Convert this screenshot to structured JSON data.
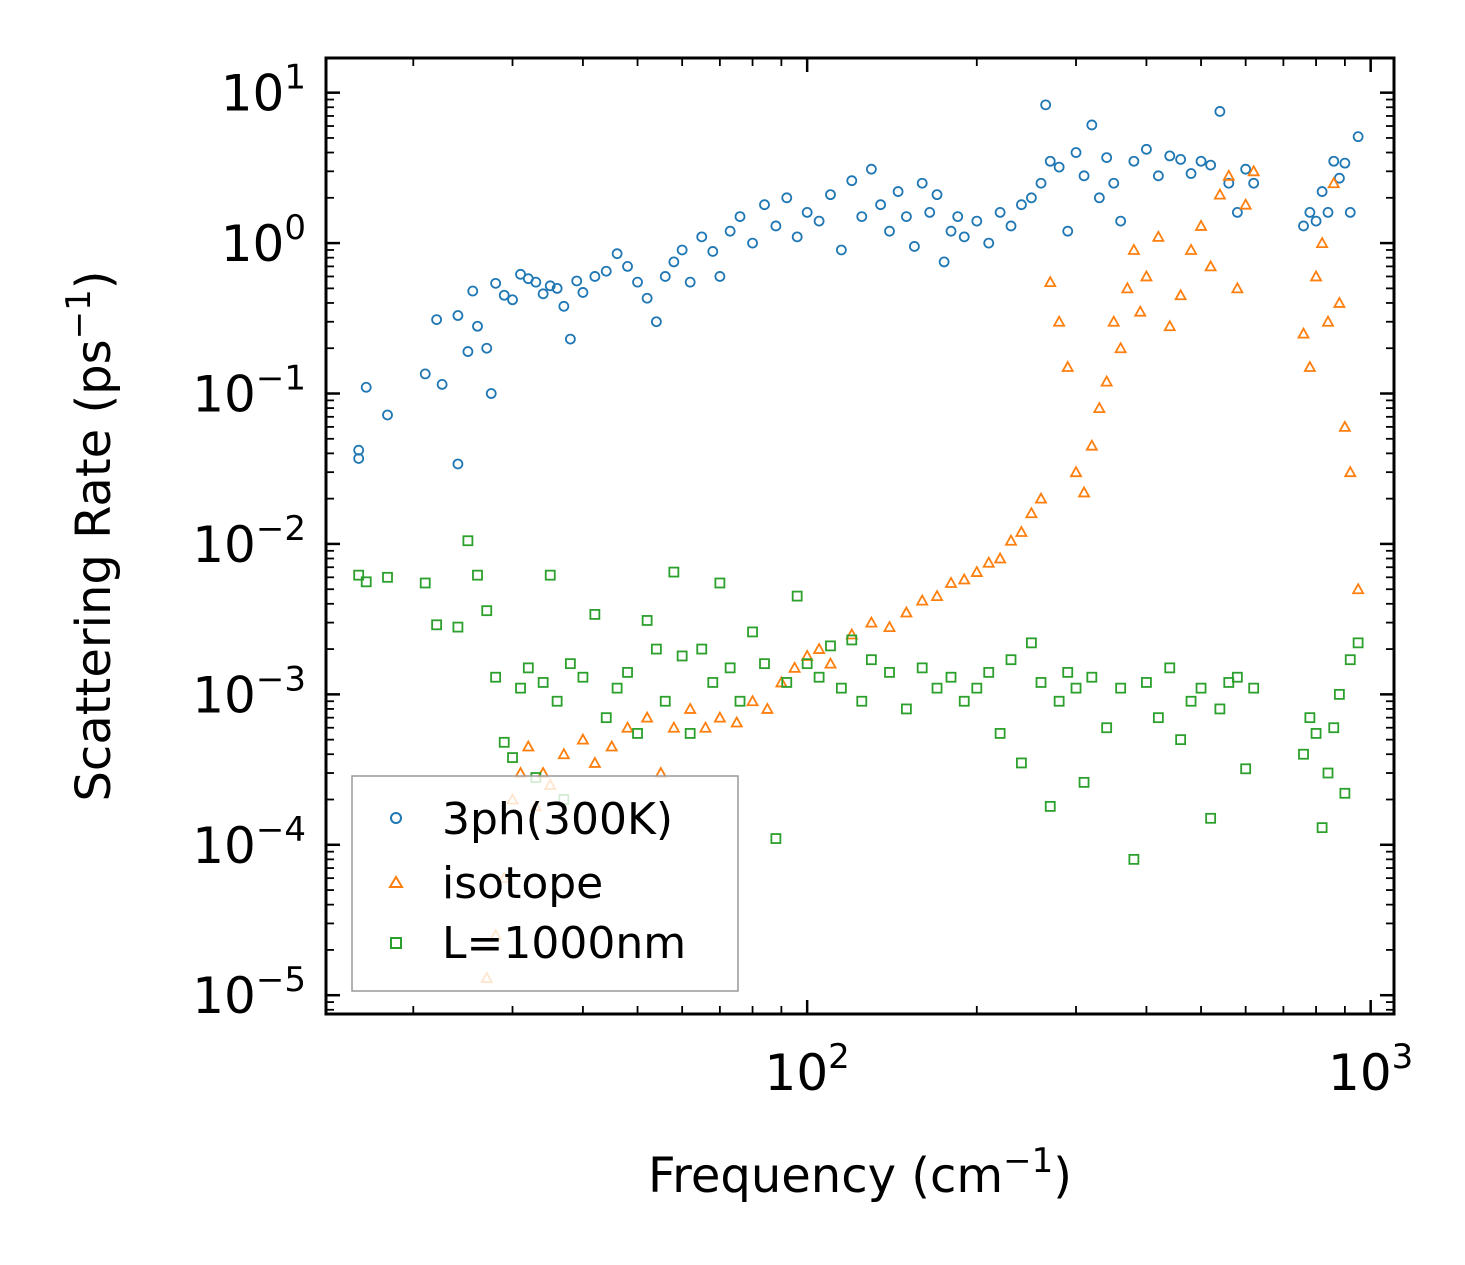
{
  "chart_data": {
    "type": "scatter",
    "title": "",
    "xlabel": "Frequency",
    "xlabel_unit_base": "cm",
    "xlabel_unit_exp": "−1",
    "ylabel": "Scattering Rate",
    "ylabel_unit_base": "ps",
    "ylabel_unit_exp": "−1",
    "xscale": "log",
    "yscale": "log",
    "xlim": [
      14,
      1100
    ],
    "ylim": [
      7.5e-06,
      17
    ],
    "x_ticks": [
      {
        "value": 100,
        "base": "10",
        "exp": "2"
      },
      {
        "value": 1000,
        "base": "10",
        "exp": "3"
      }
    ],
    "y_ticks": [
      {
        "value": 10,
        "base": "10",
        "exp": "1"
      },
      {
        "value": 1,
        "base": "10",
        "exp": "0"
      },
      {
        "value": 0.1,
        "base": "10",
        "exp": "−1"
      },
      {
        "value": 0.01,
        "base": "10",
        "exp": "−2"
      },
      {
        "value": 0.001,
        "base": "10",
        "exp": "−3"
      },
      {
        "value": 0.0001,
        "base": "10",
        "exp": "−4"
      },
      {
        "value": 1e-05,
        "base": "10",
        "exp": "−5"
      }
    ],
    "legend_position": "lower-left",
    "series": [
      {
        "name": "3ph(300K)",
        "marker": "circle",
        "color": "#1f77b4",
        "x": [
          16,
          16,
          16.5,
          18,
          21,
          22,
          22.5,
          24,
          24,
          25,
          25.5,
          26,
          27,
          27.5,
          28,
          29,
          30,
          31,
          32,
          33,
          34,
          35,
          36,
          37,
          38,
          39,
          40,
          42,
          44,
          46,
          48,
          50,
          52,
          54,
          56,
          58,
          60,
          62,
          65,
          68,
          70,
          73,
          76,
          80,
          84,
          88,
          92,
          96,
          100,
          105,
          110,
          115,
          120,
          125,
          130,
          135,
          140,
          145,
          150,
          155,
          160,
          165,
          170,
          175,
          180,
          185,
          190,
          200,
          210,
          220,
          230,
          240,
          250,
          260,
          265,
          270,
          280,
          290,
          300,
          310,
          320,
          330,
          340,
          350,
          360,
          380,
          400,
          420,
          440,
          460,
          480,
          500,
          520,
          540,
          560,
          580,
          600,
          620,
          760,
          780,
          800,
          820,
          840,
          860,
          880,
          900,
          920,
          950
        ],
        "y": [
          0.037,
          0.042,
          0.11,
          0.072,
          0.135,
          0.31,
          0.115,
          0.034,
          0.33,
          0.19,
          0.48,
          0.28,
          0.2,
          0.1,
          0.54,
          0.45,
          0.42,
          0.62,
          0.58,
          0.55,
          0.46,
          0.52,
          0.5,
          0.38,
          0.23,
          0.56,
          0.47,
          0.6,
          0.65,
          0.85,
          0.7,
          0.55,
          0.43,
          0.3,
          0.6,
          0.75,
          0.9,
          0.55,
          1.1,
          0.88,
          0.6,
          1.2,
          1.5,
          1.0,
          1.8,
          1.3,
          2.0,
          1.1,
          1.6,
          1.4,
          2.1,
          0.9,
          2.6,
          1.5,
          3.1,
          1.8,
          1.2,
          2.2,
          1.5,
          0.95,
          2.5,
          1.6,
          2.1,
          0.75,
          1.2,
          1.5,
          1.1,
          1.4,
          1.0,
          1.6,
          1.3,
          1.8,
          2.0,
          2.5,
          8.3,
          3.5,
          3.2,
          1.2,
          4.0,
          2.8,
          6.1,
          2.0,
          3.7,
          2.5,
          1.4,
          3.5,
          4.2,
          2.8,
          3.8,
          3.6,
          2.9,
          3.5,
          3.3,
          7.5,
          2.5,
          1.6,
          3.1,
          2.5,
          1.3,
          1.6,
          1.4,
          2.2,
          1.6,
          3.5,
          2.7,
          3.4,
          1.6,
          5.1
        ]
      },
      {
        "name": "isotope",
        "marker": "triangle",
        "color": "#ff7f0e",
        "x": [
          27,
          28,
          29,
          30,
          31,
          32,
          33,
          34,
          35,
          37,
          40,
          42,
          45,
          48,
          52,
          55,
          58,
          62,
          66,
          70,
          75,
          80,
          85,
          90,
          95,
          100,
          105,
          110,
          120,
          130,
          140,
          150,
          160,
          170,
          180,
          190,
          200,
          210,
          220,
          230,
          240,
          250,
          260,
          270,
          280,
          290,
          300,
          310,
          320,
          330,
          340,
          350,
          360,
          370,
          380,
          390,
          400,
          420,
          440,
          460,
          480,
          500,
          520,
          540,
          560,
          580,
          600,
          620,
          760,
          780,
          800,
          820,
          840,
          860,
          880,
          900,
          920,
          950
        ],
        "y": [
          1.3e-05,
          2.5e-05,
          6e-05,
          0.0002,
          0.0003,
          0.00045,
          0.00018,
          0.0003,
          0.00025,
          0.0004,
          0.0005,
          0.00035,
          0.00045,
          0.0006,
          0.0007,
          0.0003,
          0.0006,
          0.0008,
          0.0006,
          0.0007,
          0.00065,
          0.0009,
          0.0008,
          0.0012,
          0.0015,
          0.0018,
          0.002,
          0.0016,
          0.0025,
          0.003,
          0.0028,
          0.0035,
          0.0042,
          0.0045,
          0.0055,
          0.0058,
          0.0065,
          0.0075,
          0.008,
          0.0105,
          0.012,
          0.016,
          0.02,
          0.55,
          0.3,
          0.15,
          0.03,
          0.022,
          0.045,
          0.08,
          0.12,
          0.3,
          0.2,
          0.5,
          0.9,
          0.35,
          0.6,
          1.1,
          0.28,
          0.45,
          0.9,
          1.3,
          0.7,
          2.1,
          2.8,
          0.5,
          1.8,
          3.0,
          0.25,
          0.15,
          0.6,
          1.0,
          0.3,
          2.5,
          0.4,
          0.06,
          0.03,
          0.005
        ]
      },
      {
        "name": "L=1000nm",
        "marker": "square",
        "color": "#2ca02c",
        "x": [
          16,
          16.5,
          18,
          21,
          22,
          24,
          25,
          26,
          27,
          28,
          29,
          30,
          31,
          32,
          33,
          34,
          35,
          36,
          37,
          38,
          40,
          42,
          44,
          46,
          48,
          50,
          52,
          54,
          56,
          58,
          60,
          62,
          65,
          68,
          70,
          73,
          76,
          80,
          84,
          88,
          92,
          96,
          100,
          105,
          110,
          115,
          120,
          125,
          130,
          140,
          150,
          160,
          170,
          180,
          190,
          200,
          210,
          220,
          230,
          240,
          250,
          260,
          270,
          280,
          290,
          300,
          310,
          320,
          340,
          360,
          380,
          400,
          420,
          440,
          460,
          480,
          500,
          520,
          540,
          560,
          580,
          600,
          620,
          760,
          780,
          800,
          820,
          840,
          860,
          880,
          900,
          920,
          950
        ],
        "y": [
          0.0062,
          0.0056,
          0.006,
          0.0055,
          0.0029,
          0.0028,
          0.0105,
          0.0062,
          0.0036,
          0.0013,
          0.00048,
          0.00038,
          0.0011,
          0.0015,
          0.00028,
          0.0012,
          0.0062,
          0.0009,
          0.0002,
          0.0016,
          0.0013,
          0.0034,
          0.0007,
          0.0011,
          0.0014,
          0.00055,
          0.0031,
          0.002,
          0.0009,
          0.0065,
          0.0018,
          0.00055,
          0.002,
          0.0012,
          0.0055,
          0.0015,
          0.0009,
          0.0026,
          0.0016,
          0.00011,
          0.0012,
          0.0045,
          0.0016,
          0.0013,
          0.0021,
          0.0011,
          0.0023,
          0.0009,
          0.0017,
          0.0014,
          0.0008,
          0.0015,
          0.0011,
          0.0013,
          0.0009,
          0.0011,
          0.0014,
          0.00055,
          0.0017,
          0.00035,
          0.0022,
          0.0012,
          0.00018,
          0.0009,
          0.0014,
          0.0011,
          0.00026,
          0.0013,
          0.0006,
          0.0011,
          8e-05,
          0.0012,
          0.0007,
          0.0015,
          0.0005,
          0.0009,
          0.0011,
          0.00015,
          0.0008,
          0.0012,
          0.0013,
          0.00032,
          0.0011,
          0.0004,
          0.0007,
          0.00055,
          0.00013,
          0.0003,
          0.0006,
          0.001,
          0.00022,
          0.0017,
          0.0022
        ]
      }
    ]
  }
}
